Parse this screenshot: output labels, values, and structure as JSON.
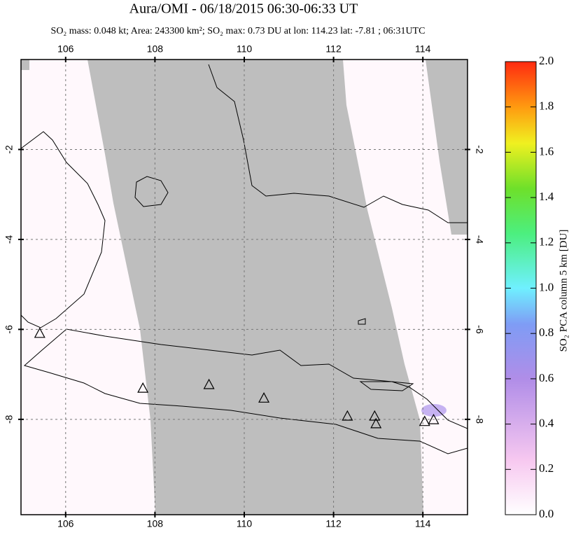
{
  "chart_data": {
    "type": "map",
    "title": "Aura/OMI - 06/18/2015 06:30-06:33 UT",
    "subtitle": "SO₂ mass: 0.048 kt; Area: 243300 km²; SO₂ max: 0.73 DU at lon: 114.23 lat: -7.81 ; 06:31UTC",
    "xlim": [
      105,
      115
    ],
    "ylim": [
      -10.12,
      0
    ],
    "xticks": [
      106,
      108,
      110,
      112,
      114
    ],
    "yticks": [
      -2,
      -4,
      -6,
      -8
    ],
    "grid": true,
    "volcanoes": {
      "color": "#000000",
      "lon": [
        105.42,
        107.73,
        109.21,
        110.44,
        112.31,
        112.92,
        112.95,
        114.04,
        114.24
      ],
      "lat": [
        -6.1,
        -7.32,
        -7.24,
        -7.54,
        -7.94,
        -7.94,
        -8.11,
        -8.06,
        -8.02
      ]
    },
    "colorbar": {
      "label": "SO₂ PCA column 5 km [DU]",
      "lim": [
        0,
        2
      ],
      "ticks": [
        {
          "value": 0,
          "label": "0.0"
        },
        0.2,
        0.4,
        0.6,
        0.8,
        {
          "value": 1,
          "label": "1.0"
        },
        1.2,
        1.4,
        1.6,
        1.8,
        {
          "value": 2,
          "label": "2.0"
        }
      ]
    }
  }
}
